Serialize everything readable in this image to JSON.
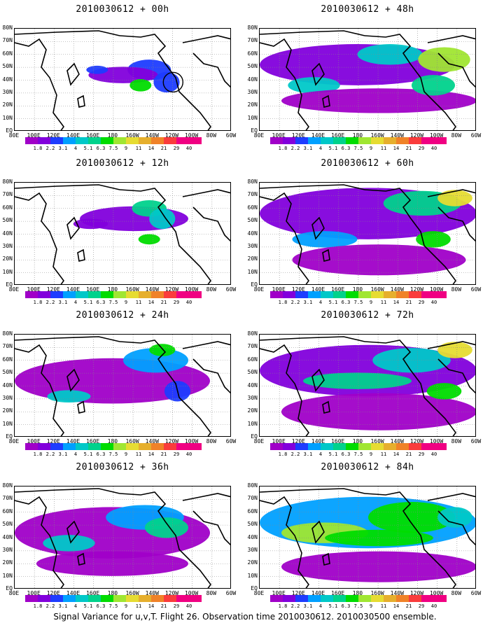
{
  "panels": [
    {
      "title": "2010030612 + 00h"
    },
    {
      "title": "2010030612 + 48h"
    },
    {
      "title": "2010030612 + 12h"
    },
    {
      "title": "2010030612 + 60h"
    },
    {
      "title": "2010030612 + 24h"
    },
    {
      "title": "2010030612 + 72h"
    },
    {
      "title": "2010030612 + 36h"
    },
    {
      "title": "2010030612 + 84h"
    }
  ],
  "axes": {
    "lat_labels": [
      "80N",
      "70N",
      "60N",
      "50N",
      "40N",
      "30N",
      "20N",
      "10N",
      "EQ"
    ],
    "lon_labels": [
      "80E",
      "100E",
      "120E",
      "140E",
      "160E",
      "180",
      "160W",
      "140W",
      "120W",
      "100W",
      "80W",
      "60W"
    ]
  },
  "colorbar": {
    "labels": [
      "1.8",
      "2.2",
      "3.1",
      "4",
      "5.1",
      "6.3",
      "7.5",
      "9",
      "11",
      "14",
      "21",
      "29",
      "40"
    ],
    "colors": [
      "#a000c8",
      "#8200dc",
      "#1e3cff",
      "#00a0ff",
      "#00c8c8",
      "#00d28c",
      "#00dc00",
      "#a0e632",
      "#e6dc32",
      "#e6af2d",
      "#f08228",
      "#fa3c3c",
      "#f00082"
    ]
  },
  "caption": "Signal Variance for u,v,T. Flight 26. Observation time 2010030612. 2010030500 ensemble."
}
